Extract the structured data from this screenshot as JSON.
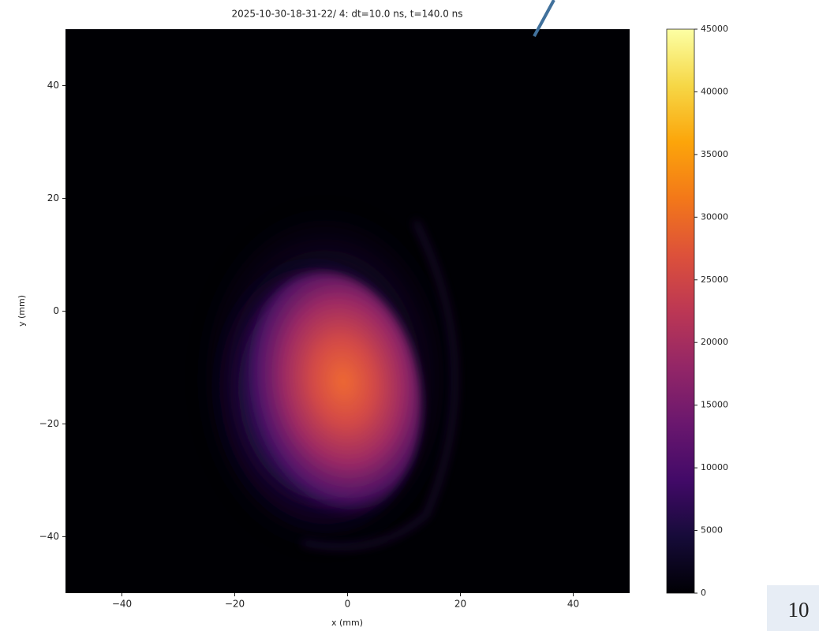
{
  "chart_data": {
    "type": "heatmap",
    "title": "2025-10-30-18-31-22/ 4: dt=10.0 ns, t=140.0 ns",
    "xlabel": "x (mm)",
    "ylabel": "y (mm)",
    "xlim": [
      -50,
      50
    ],
    "ylim": [
      -50,
      50
    ],
    "xticks": [
      {
        "value": -40,
        "label": "−40"
      },
      {
        "value": -20,
        "label": "−20"
      },
      0,
      20,
      40
    ],
    "yticks": [
      {
        "value": -40,
        "label": "−40"
      },
      {
        "value": -20,
        "label": "−20"
      },
      0,
      20,
      40
    ],
    "colormap": "inferno",
    "colorbar": {
      "lim": [
        0,
        45000
      ],
      "ticks": [
        0,
        5000,
        10000,
        15000,
        20000,
        25000,
        30000,
        35000,
        40000,
        45000
      ]
    }
  },
  "page_number": "10"
}
